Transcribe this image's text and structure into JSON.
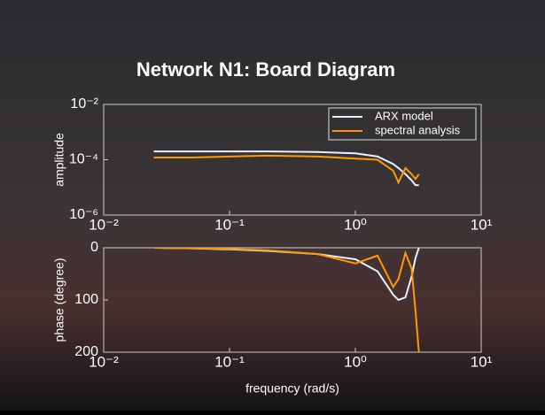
{
  "chart_data": [
    {
      "type": "line",
      "title": "Network N1: Board Diagram",
      "ylabel": "amplitude",
      "x": [
        0.025,
        0.05,
        0.1,
        0.2,
        0.5,
        1,
        1.5,
        2,
        2.2,
        2.5,
        2.8,
        3,
        3.2
      ],
      "series": [
        {
          "name": "ARX model",
          "color": "#e6f2ff",
          "values": [
            0.0002,
            0.0002,
            0.0002,
            0.0002,
            0.00019,
            0.00017,
            0.00013,
            7e-05,
            5e-05,
            3e-05,
            1.8e-05,
            1.2e-05,
            1.2e-05
          ]
        },
        {
          "name": "spectral analysis",
          "color": "#ff9900",
          "values": [
            0.00012,
            0.00012,
            0.00013,
            0.00014,
            0.00013,
            0.00011,
            0.0001,
            4e-05,
            1.5e-05,
            5e-05,
            3e-05,
            2e-05,
            3e-05
          ]
        }
      ],
      "xscale": "log",
      "yscale": "log",
      "xlim": [
        0.01,
        10
      ],
      "ylim": [
        1e-06,
        0.01
      ],
      "xticks": [
        {
          "value": 0.01,
          "label": "10⁻²"
        },
        {
          "value": 0.1,
          "label": "10⁻¹"
        },
        {
          "value": 1,
          "label": "10⁰"
        },
        {
          "value": 10,
          "label": "10¹"
        }
      ],
      "yticks": [
        {
          "value": 1e-06,
          "label": "10⁻⁶"
        },
        {
          "value": 0.0001,
          "label": "10⁻⁴"
        },
        {
          "value": 0.01,
          "label": "10⁻²"
        }
      ],
      "legend": "upper right"
    },
    {
      "type": "line",
      "ylabel": "phase (degree)",
      "xlabel": "frequency (rad/s)",
      "x": [
        0.025,
        0.05,
        0.1,
        0.2,
        0.5,
        1,
        1.5,
        2,
        2.2,
        2.5,
        2.8,
        3,
        3.2
      ],
      "series": [
        {
          "name": "ARX model",
          "color": "#e6f2ff",
          "values": [
            0,
            1,
            3,
            6,
            12,
            22,
            45,
            90,
            100,
            95,
            55,
            20,
            0
          ]
        },
        {
          "name": "spectral analysis",
          "color": "#ff9900",
          "values": [
            0,
            1,
            2,
            5,
            12,
            30,
            15,
            75,
            60,
            10,
            40,
            120,
            200
          ]
        }
      ],
      "xscale": "log",
      "y_inverted": true,
      "xlim": [
        0.01,
        10
      ],
      "ylim": [
        0,
        200
      ],
      "xticks": [
        {
          "value": 0.01,
          "label": "10⁻²"
        },
        {
          "value": 0.1,
          "label": "10⁻¹"
        },
        {
          "value": 1,
          "label": "10⁰"
        },
        {
          "value": 10,
          "label": "10¹"
        }
      ],
      "yticks": [
        0,
        100,
        200
      ]
    }
  ]
}
